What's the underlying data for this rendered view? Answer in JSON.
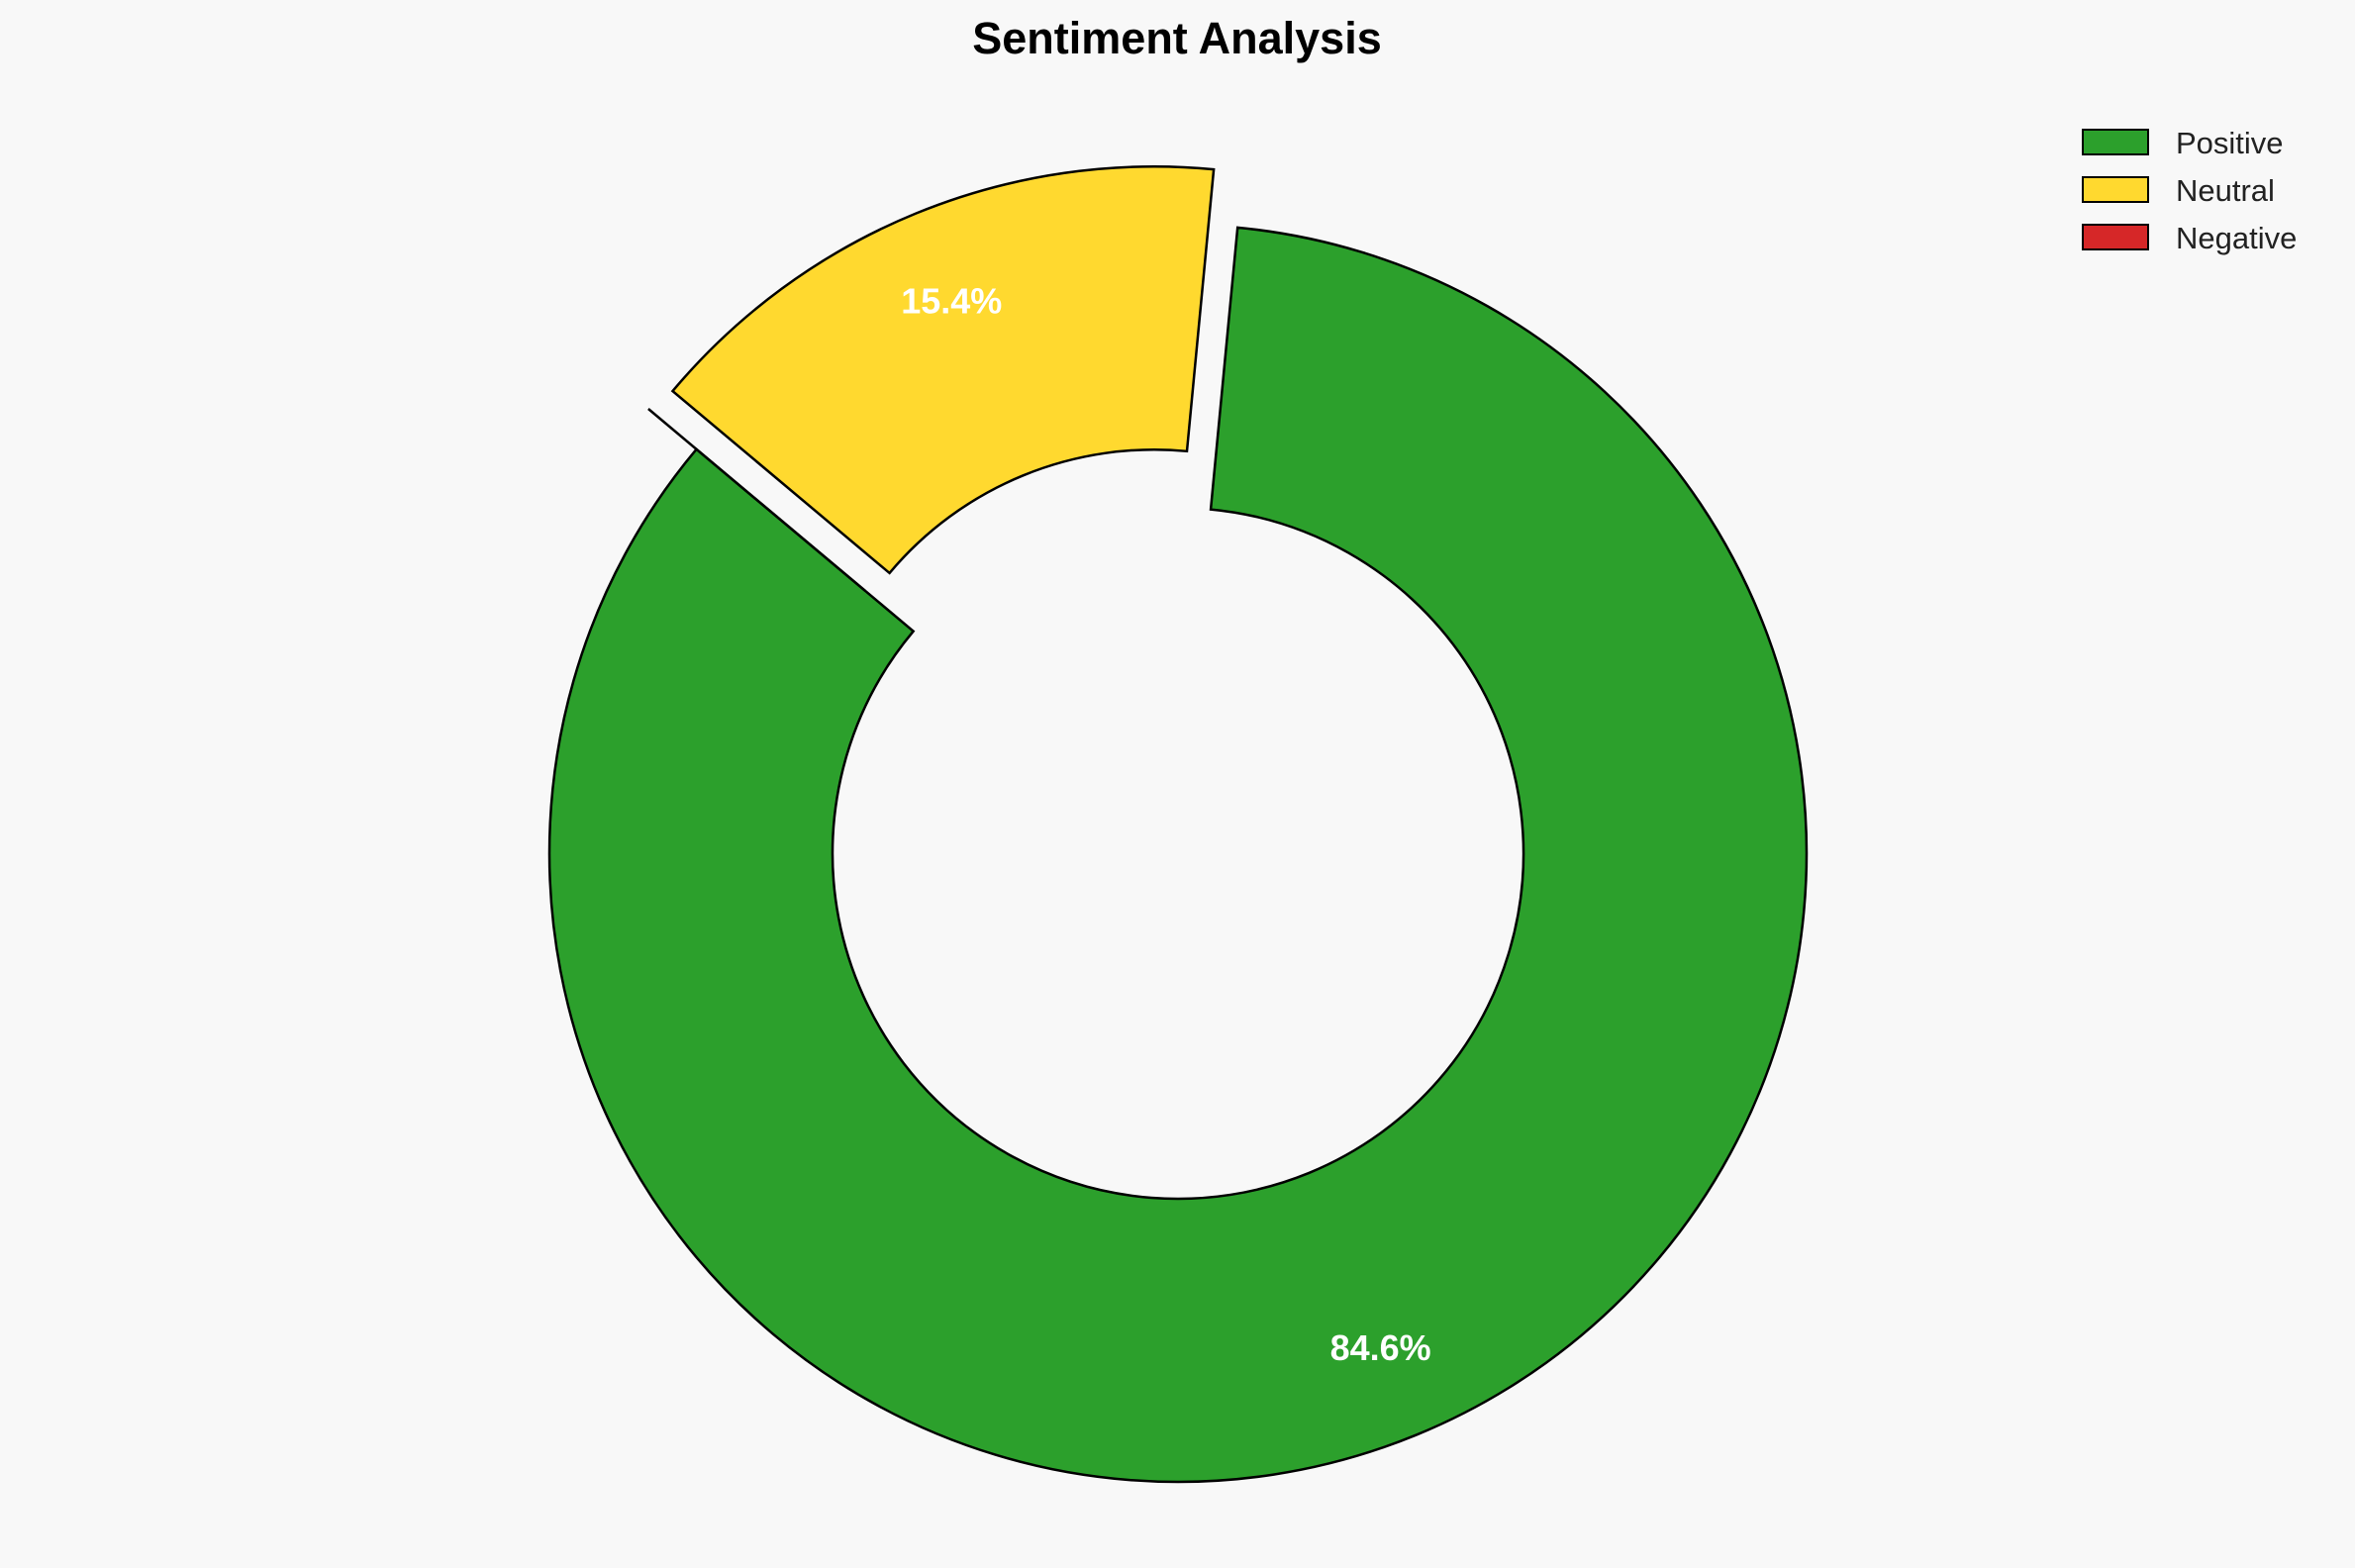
{
  "chart_data": {
    "type": "pie",
    "title": "Sentiment Analysis",
    "donut": true,
    "categories": [
      "Positive",
      "Neutral",
      "Negative"
    ],
    "values": [
      84.6,
      15.4,
      0.0
    ],
    "labels": [
      "84.6%",
      "15.4%",
      ""
    ],
    "colors": [
      "#2ca02c",
      "#ffd92f",
      "#d62728"
    ],
    "exploded": [
      false,
      true,
      true
    ],
    "legend_position": "top-right"
  }
}
